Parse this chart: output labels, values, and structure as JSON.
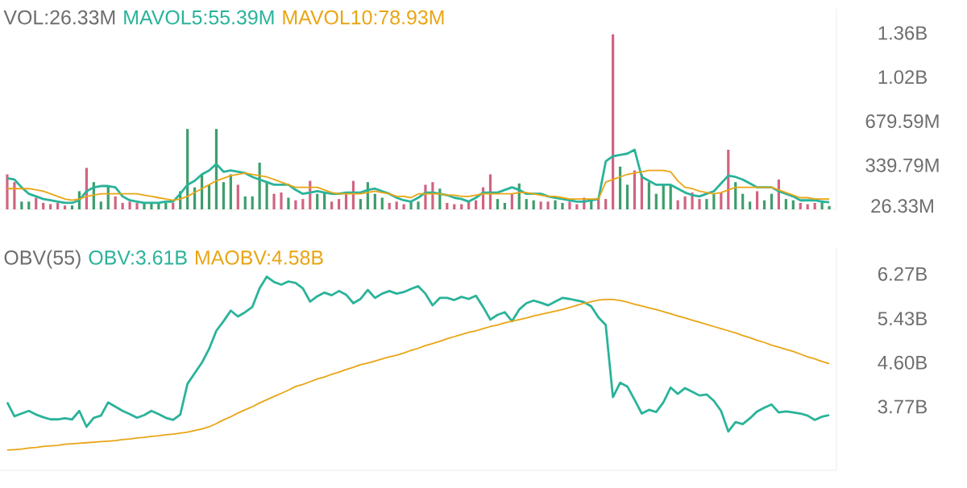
{
  "chart_data": [
    {
      "type": "bar",
      "title": "VOL:26.33M",
      "categories": [
        null,
        null,
        null,
        null,
        null,
        null,
        null,
        null,
        null,
        null,
        null,
        null,
        null,
        null,
        null,
        null,
        null,
        null,
        null,
        null,
        null,
        null,
        null,
        null,
        null,
        null,
        null,
        null,
        null,
        null,
        null,
        null,
        null,
        null,
        null,
        null,
        null,
        null,
        null,
        null,
        null,
        null,
        null,
        null,
        null,
        null,
        null,
        null,
        null,
        null,
        null,
        null,
        null,
        null,
        null,
        null,
        null,
        null,
        null,
        null,
        null,
        null,
        null,
        null,
        null,
        null,
        null,
        null,
        null,
        null,
        null,
        null,
        null,
        null,
        null,
        null,
        null,
        null,
        null,
        null,
        null,
        null,
        null,
        null,
        null,
        null,
        null,
        null,
        null,
        null,
        null,
        null,
        null,
        null,
        null,
        null,
        null,
        null,
        null,
        null,
        null,
        null,
        null,
        null,
        null,
        null,
        null,
        null,
        null,
        null,
        null,
        null,
        null,
        null,
        null
      ],
      "ylim": [
        0,
        1550000000.0
      ],
      "yticks": [
        {
          "value": 1360000000.0,
          "label": "1.36B"
        },
        {
          "value": 1020000000.0,
          "label": "1.02B"
        },
        {
          "value": 679590000.0,
          "label": "679.59M"
        },
        {
          "value": 339790000.0,
          "label": "339.79M"
        },
        {
          "value": 26330000.0,
          "label": "26.33M"
        }
      ],
      "tick_labels": "y",
      "legend": "top left",
      "series": [
        {
          "type": "bar",
          "values": [
            270000000.0,
            210000000.0,
            60000000.0,
            60000000.0,
            90000000.0,
            50000000.0,
            40000000.0,
            50000000.0,
            30000000.0,
            30000000.0,
            140000000.0,
            320000000.0,
            210000000.0,
            60000000.0,
            180000000.0,
            100000000.0,
            50000000.0,
            60000000.0,
            50000000.0,
            50000000.0,
            50000000.0,
            50000000.0,
            50000000.0,
            50000000.0,
            140000000.0,
            620000000.0,
            170000000.0,
            270000000.0,
            190000000.0,
            620000000.0,
            210000000.0,
            270000000.0,
            190000000.0,
            100000000.0,
            100000000.0,
            360000000.0,
            210000000.0,
            120000000.0,
            130000000.0,
            90000000.0,
            70000000.0,
            80000000.0,
            220000000.0,
            120000000.0,
            130000000.0,
            60000000.0,
            80000000.0,
            130000000.0,
            220000000.0,
            80000000.0,
            210000000.0,
            120000000.0,
            90000000.0,
            50000000.0,
            60000000.0,
            40000000.0,
            60000000.0,
            60000000.0,
            190000000.0,
            210000000.0,
            160000000.0,
            50000000.0,
            40000000.0,
            40000000.0,
            60000000.0,
            70000000.0,
            170000000.0,
            270000000.0,
            80000000.0,
            50000000.0,
            120000000.0,
            200000000.0,
            80000000.0,
            70000000.0,
            60000000.0,
            60000000.0,
            70000000.0,
            50000000.0,
            60000000.0,
            40000000.0,
            90000000.0,
            80000000.0,
            90000000.0,
            80000000.0,
            1350000000.0,
            330000000.0,
            190000000.0,
            300000000.0,
            270000000.0,
            210000000.0,
            120000000.0,
            190000000.0,
            190000000.0,
            70000000.0,
            100000000.0,
            130000000.0,
            80000000.0,
            80000000.0,
            120000000.0,
            130000000.0,
            460000000.0,
            210000000.0,
            120000000.0,
            60000000.0,
            140000000.0,
            70000000.0,
            120000000.0,
            230000000.0,
            80000000.0,
            70000000.0,
            50000000.0,
            40000000.0,
            50000000.0,
            70000000.0,
            26000000.0
          ],
          "colors": [
            "#d16480",
            "#d16480",
            "#3d9e6c",
            "#3d9e6c",
            "#d16480",
            "#d16480",
            "#d16480",
            "#d16480",
            "#d16480",
            "#3d9e6c",
            "#3d9e6c",
            "#d16480",
            "#3d9e6c",
            "#3d9e6c",
            "#3d9e6c",
            "#d16480",
            "#d16480",
            "#d16480",
            "#d16480",
            "#3d9e6c",
            "#3d9e6c",
            "#3d9e6c",
            "#3d9e6c",
            "#d16480",
            "#3d9e6c",
            "#3d9e6c",
            "#3d9e6c",
            "#3d9e6c",
            "#3d9e6c",
            "#3d9e6c",
            "#3d9e6c",
            "#3d9e6c",
            "#d16480",
            "#3d9e6c",
            "#3d9e6c",
            "#3d9e6c",
            "#3d9e6c",
            "#d16480",
            "#d16480",
            "#3d9e6c",
            "#d16480",
            "#d16480",
            "#d16480",
            "#3d9e6c",
            "#3d9e6c",
            "#d16480",
            "#d16480",
            "#d16480",
            "#d16480",
            "#3d9e6c",
            "#3d9e6c",
            "#3d9e6c",
            "#3d9e6c",
            "#d16480",
            "#d16480",
            "#d16480",
            "#3d9e6c",
            "#3d9e6c",
            "#d16480",
            "#d16480",
            "#3d9e6c",
            "#d16480",
            "#d16480",
            "#d16480",
            "#d16480",
            "#d16480",
            "#d16480",
            "#d16480",
            "#3d9e6c",
            "#3d9e6c",
            "#d16480",
            "#3d9e6c",
            "#3d9e6c",
            "#3d9e6c",
            "#d16480",
            "#d16480",
            "#3d9e6c",
            "#3d9e6c",
            "#d16480",
            "#d16480",
            "#d16480",
            "#3d9e6c",
            "#d16480",
            "#d16480",
            "#d16480",
            "#3d9e6c",
            "#3d9e6c",
            "#d16480",
            "#d16480",
            "#3d9e6c",
            "#3d9e6c",
            "#3d9e6c",
            "#3d9e6c",
            "#d16480",
            "#d16480",
            "#d16480",
            "#d16480",
            "#3d9e6c",
            "#3d9e6c",
            "#d16480",
            "#d16480",
            "#3d9e6c",
            "#3d9e6c",
            "#3d9e6c",
            "#d16480",
            "#3d9e6c",
            "#3d9e6c",
            "#d16480",
            "#3d9e6c",
            "#3d9e6c",
            "#d16480",
            "#d16480",
            "#d16480",
            "#3d9e6c",
            "#3d9e6c"
          ]
        },
        {
          "name": "MAVOL5:55.39M",
          "type": "line",
          "color": "#2ab39a",
          "values": [
            240000000.0,
            230000000.0,
            170000000.0,
            120000000.0,
            100000000.0,
            80000000.0,
            70000000.0,
            60000000.0,
            50000000.0,
            50000000.0,
            70000000.0,
            140000000.0,
            170000000.0,
            180000000.0,
            180000000.0,
            170000000.0,
            100000000.0,
            70000000.0,
            60000000.0,
            50000000.0,
            50000000.0,
            50000000.0,
            60000000.0,
            60000000.0,
            120000000.0,
            190000000.0,
            220000000.0,
            270000000.0,
            300000000.0,
            350000000.0,
            290000000.0,
            300000000.0,
            290000000.0,
            280000000.0,
            250000000.0,
            230000000.0,
            210000000.0,
            190000000.0,
            190000000.0,
            190000000.0,
            150000000.0,
            120000000.0,
            130000000.0,
            140000000.0,
            130000000.0,
            120000000.0,
            120000000.0,
            130000000.0,
            130000000.0,
            130000000.0,
            150000000.0,
            160000000.0,
            140000000.0,
            120000000.0,
            90000000.0,
            70000000.0,
            60000000.0,
            90000000.0,
            130000000.0,
            130000000.0,
            120000000.0,
            110000000.0,
            90000000.0,
            80000000.0,
            60000000.0,
            90000000.0,
            130000000.0,
            130000000.0,
            130000000.0,
            150000000.0,
            170000000.0,
            150000000.0,
            120000000.0,
            120000000.0,
            120000000.0,
            100000000.0,
            90000000.0,
            80000000.0,
            70000000.0,
            60000000.0,
            60000000.0,
            70000000.0,
            80000000.0,
            370000000.0,
            410000000.0,
            420000000.0,
            430000000.0,
            460000000.0,
            250000000.0,
            220000000.0,
            190000000.0,
            190000000.0,
            190000000.0,
            160000000.0,
            130000000.0,
            110000000.0,
            100000000.0,
            120000000.0,
            140000000.0,
            200000000.0,
            260000000.0,
            250000000.0,
            230000000.0,
            200000000.0,
            170000000.0,
            170000000.0,
            170000000.0,
            140000000.0,
            120000000.0,
            100000000.0,
            70000000.0,
            70000000.0,
            70000000.0,
            60000000.0,
            55000000.0
          ]
        },
        {
          "name": "MAVOL10:78.93M",
          "type": "line",
          "color": "#e9a514",
          "values": [
            160000000.0,
            160000000.0,
            160000000.0,
            160000000.0,
            150000000.0,
            140000000.0,
            120000000.0,
            100000000.0,
            80000000.0,
            70000000.0,
            80000000.0,
            100000000.0,
            110000000.0,
            120000000.0,
            120000000.0,
            120000000.0,
            120000000.0,
            120000000.0,
            120000000.0,
            110000000.0,
            100000000.0,
            90000000.0,
            80000000.0,
            70000000.0,
            80000000.0,
            100000000.0,
            130000000.0,
            160000000.0,
            190000000.0,
            220000000.0,
            240000000.0,
            260000000.0,
            270000000.0,
            280000000.0,
            270000000.0,
            260000000.0,
            250000000.0,
            230000000.0,
            210000000.0,
            190000000.0,
            170000000.0,
            170000000.0,
            170000000.0,
            170000000.0,
            150000000.0,
            130000000.0,
            120000000.0,
            120000000.0,
            120000000.0,
            120000000.0,
            130000000.0,
            140000000.0,
            130000000.0,
            120000000.0,
            100000000.0,
            100000000.0,
            90000000.0,
            120000000.0,
            120000000.0,
            120000000.0,
            120000000.0,
            110000000.0,
            110000000.0,
            100000000.0,
            100000000.0,
            110000000.0,
            120000000.0,
            120000000.0,
            120000000.0,
            120000000.0,
            120000000.0,
            130000000.0,
            130000000.0,
            120000000.0,
            110000000.0,
            100000000.0,
            100000000.0,
            90000000.0,
            80000000.0,
            80000000.0,
            80000000.0,
            80000000.0,
            80000000.0,
            210000000.0,
            230000000.0,
            250000000.0,
            270000000.0,
            280000000.0,
            290000000.0,
            300000000.0,
            300000000.0,
            300000000.0,
            290000000.0,
            220000000.0,
            170000000.0,
            160000000.0,
            140000000.0,
            130000000.0,
            120000000.0,
            130000000.0,
            150000000.0,
            170000000.0,
            170000000.0,
            170000000.0,
            170000000.0,
            170000000.0,
            170000000.0,
            150000000.0,
            130000000.0,
            110000000.0,
            90000000.0,
            90000000.0,
            80000000.0,
            80000000.0,
            79000000.0
          ]
        }
      ]
    },
    {
      "type": "line",
      "title": "OBV(55)",
      "categories": [
        null,
        null,
        null,
        null,
        null,
        null,
        null,
        null,
        null,
        null,
        null,
        null,
        null,
        null,
        null,
        null,
        null,
        null,
        null,
        null,
        null,
        null,
        null,
        null,
        null,
        null,
        null,
        null,
        null,
        null,
        null,
        null,
        null,
        null,
        null,
        null,
        null,
        null,
        null,
        null,
        null,
        null,
        null,
        null,
        null,
        null,
        null,
        null,
        null,
        null,
        null,
        null,
        null,
        null,
        null,
        null,
        null,
        null,
        null,
        null,
        null,
        null,
        null,
        null,
        null,
        null,
        null,
        null,
        null,
        null,
        null,
        null,
        null,
        null,
        null,
        null,
        null,
        null,
        null,
        null,
        null,
        null,
        null,
        null,
        null,
        null,
        null,
        null,
        null,
        null,
        null,
        null,
        null,
        null,
        null,
        null,
        null,
        null,
        null,
        null,
        null,
        null,
        null,
        null,
        null,
        null,
        null,
        null,
        null,
        null,
        null,
        null,
        null,
        null,
        null
      ],
      "ylim": [
        2.57,
        6.76
      ],
      "yticks": [
        {
          "value": 6.27,
          "label": "6.27B"
        },
        {
          "value": 5.43,
          "label": "5.43B"
        },
        {
          "value": 4.6,
          "label": "4.60B"
        },
        {
          "value": 3.77,
          "label": "3.77B"
        }
      ],
      "tick_labels": "y",
      "legend": "top left",
      "series": [
        {
          "name": "OBV:3.61B",
          "color": "#2ab39a",
          "values": [
            3.85,
            3.59,
            3.64,
            3.69,
            3.62,
            3.57,
            3.53,
            3.53,
            3.55,
            3.53,
            3.69,
            3.39,
            3.56,
            3.6,
            3.85,
            3.77,
            3.69,
            3.63,
            3.56,
            3.61,
            3.69,
            3.63,
            3.56,
            3.52,
            3.62,
            4.2,
            4.4,
            4.6,
            4.86,
            5.2,
            5.38,
            5.58,
            5.47,
            5.55,
            5.65,
            6.0,
            6.22,
            6.12,
            6.07,
            6.13,
            6.1,
            6.0,
            5.75,
            5.85,
            5.92,
            5.87,
            5.95,
            5.88,
            5.72,
            5.8,
            5.97,
            5.82,
            5.9,
            5.95,
            5.9,
            5.93,
            5.99,
            6.04,
            5.9,
            5.68,
            5.82,
            5.82,
            5.78,
            5.84,
            5.8,
            5.86,
            5.65,
            5.41,
            5.5,
            5.55,
            5.38,
            5.6,
            5.72,
            5.77,
            5.73,
            5.68,
            5.75,
            5.82,
            5.8,
            5.77,
            5.74,
            5.66,
            5.45,
            5.31,
            3.95,
            4.22,
            4.15,
            3.9,
            3.64,
            3.71,
            3.67,
            3.85,
            4.13,
            4.01,
            4.12,
            4.05,
            3.98,
            4.0,
            3.88,
            3.69,
            3.3,
            3.48,
            3.44,
            3.55,
            3.68,
            3.75,
            3.81,
            3.66,
            3.68,
            3.66,
            3.64,
            3.6,
            3.52,
            3.58,
            3.61
          ]
        },
        {
          "name": "MAOBV:4.58B",
          "color": "#e9a514",
          "values": [
            2.95,
            2.96,
            2.97,
            2.99,
            3.0,
            3.02,
            3.03,
            3.04,
            3.06,
            3.07,
            3.08,
            3.09,
            3.1,
            3.11,
            3.12,
            3.13,
            3.15,
            3.16,
            3.18,
            3.19,
            3.21,
            3.22,
            3.24,
            3.25,
            3.27,
            3.29,
            3.32,
            3.35,
            3.39,
            3.45,
            3.52,
            3.58,
            3.65,
            3.71,
            3.77,
            3.84,
            3.9,
            3.96,
            4.02,
            4.08,
            4.15,
            4.19,
            4.24,
            4.29,
            4.33,
            4.38,
            4.42,
            4.47,
            4.51,
            4.56,
            4.59,
            4.63,
            4.67,
            4.71,
            4.74,
            4.78,
            4.83,
            4.87,
            4.92,
            4.96,
            5.0,
            5.05,
            5.09,
            5.13,
            5.17,
            5.2,
            5.24,
            5.28,
            5.31,
            5.35,
            5.38,
            5.41,
            5.44,
            5.48,
            5.51,
            5.54,
            5.57,
            5.6,
            5.64,
            5.68,
            5.72,
            5.75,
            5.78,
            5.79,
            5.79,
            5.77,
            5.74,
            5.7,
            5.67,
            5.63,
            5.6,
            5.56,
            5.52,
            5.48,
            5.44,
            5.4,
            5.36,
            5.32,
            5.28,
            5.24,
            5.2,
            5.16,
            5.11,
            5.07,
            5.02,
            4.98,
            4.93,
            4.89,
            4.85,
            4.81,
            4.76,
            4.71,
            4.67,
            4.62,
            4.58
          ]
        }
      ]
    }
  ]
}
